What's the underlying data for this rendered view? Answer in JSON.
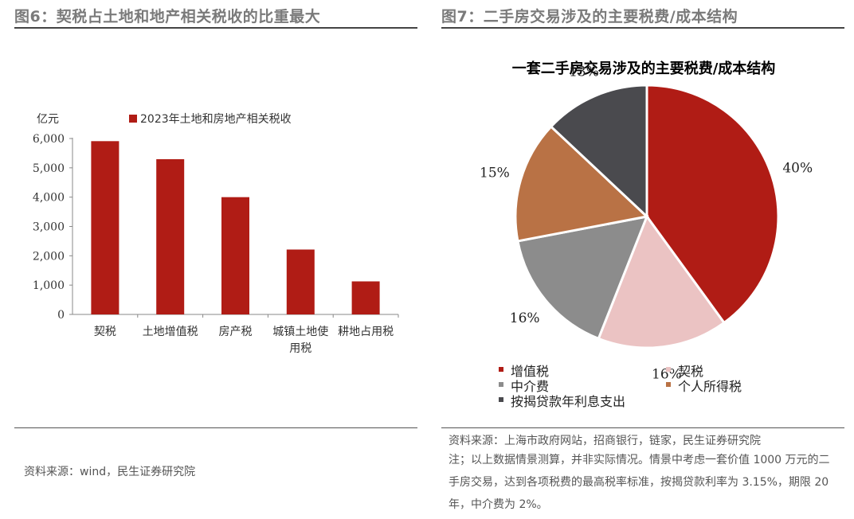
{
  "left_panel": {
    "title": "图6：契税占土地和地产相关税收的比重最大",
    "unit": "亿元",
    "source": "资料来源：wind，民生证券研究院"
  },
  "right_panel": {
    "title": "图7：二手房交易涉及的主要税费/成本结构",
    "source": "资料来源：上海市政府网站，招商银行，链家，民生证券研究院",
    "note": "注；以上数据情景测算，并非实际情况。情景中考虑一套价值 1000 万元的二手房交易，达到各项税费的最高税率标准，按揭贷款利率为 3.15%，期限 20 年，中介费为 2%。"
  },
  "chart_data": [
    {
      "type": "bar",
      "title": "",
      "ylabel": "亿元",
      "xlabel": "",
      "categories": [
        "契税",
        "土地增值税",
        "房产税",
        "城镇土地使用税",
        "耕地占用税"
      ],
      "category_lines": [
        [
          "契税"
        ],
        [
          "土地增值税"
        ],
        [
          "房产税"
        ],
        [
          "城镇土地使",
          "用税"
        ],
        [
          "耕地占用税"
        ]
      ],
      "series": [
        {
          "name": "2023年土地和房地产相关税收",
          "values": [
            5910,
            5294,
            4000,
            2213,
            1127
          ],
          "color": "#b01c15"
        }
      ],
      "ylim": [
        0,
        6000
      ],
      "yticks": [
        0,
        1000,
        2000,
        3000,
        4000,
        5000,
        6000
      ],
      "ytick_labels": [
        "0",
        "1,000",
        "2,000",
        "3,000",
        "4,000",
        "5,000",
        "6,000"
      ],
      "grid": false,
      "legend_position": "top"
    },
    {
      "type": "pie",
      "title": "一套二手房交易涉及的主要税费/成本结构",
      "slices": [
        {
          "name": "增值税",
          "value": 40,
          "label": "40%",
          "color": "#b01c15"
        },
        {
          "name": "契税",
          "value": 16,
          "label": "16%",
          "color": "#ebc3c3"
        },
        {
          "name": "中介费",
          "value": 16,
          "label": "16%",
          "color": "#8c8c8c"
        },
        {
          "name": "个人所得税",
          "value": 15,
          "label": "15%",
          "color": "#b97245"
        },
        {
          "name": "按揭贷款年利息支出",
          "value": 13,
          "label": "13%",
          "color": "#4a4a4e"
        }
      ],
      "legend_position": "bottom"
    }
  ]
}
